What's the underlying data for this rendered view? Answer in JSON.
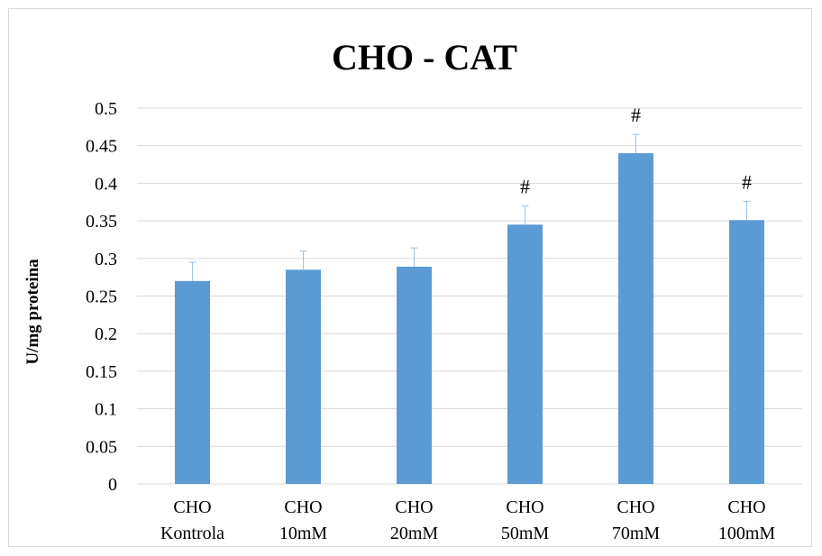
{
  "chart_data": {
    "type": "bar",
    "title": "CHO - CAT",
    "xlabel": "",
    "ylabel": "U/mg proteina",
    "ylim": [
      0,
      0.5
    ],
    "yticks": [
      "0",
      "0.05",
      "0.1",
      "0.15",
      "0.2",
      "0.25",
      "0.3",
      "0.35",
      "0.4",
      "0.45",
      "0.5"
    ],
    "grid": true,
    "legend": "none",
    "categories": [
      [
        "CHO",
        "Kontrola"
      ],
      [
        "CHO",
        "10mM"
      ],
      [
        "CHO",
        "20mM"
      ],
      [
        "CHO",
        "50mM"
      ],
      [
        "CHO",
        "70mM"
      ],
      [
        "CHO",
        "100mM"
      ]
    ],
    "values": [
      0.27,
      0.285,
      0.289,
      0.345,
      0.44,
      0.351
    ],
    "error_upper": [
      0.025,
      0.025,
      0.025,
      0.025,
      0.025,
      0.025
    ],
    "annotations": [
      "",
      "",
      "",
      "#",
      "#",
      "#"
    ],
    "colors": {
      "bar": "#5b9bd5",
      "error": "#9dc3e6",
      "grid": "#d9d9d9",
      "text": "#000000"
    }
  }
}
